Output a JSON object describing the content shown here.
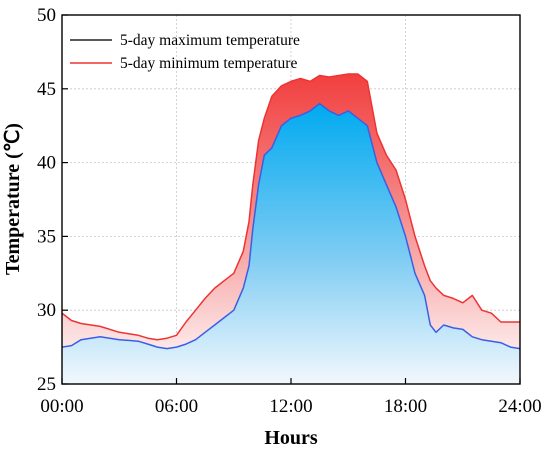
{
  "chart_data": {
    "type": "area",
    "title": "",
    "xlabel": "Hours",
    "ylabel": "Temperature (℃)",
    "xlim": [
      0,
      24
    ],
    "ylim": [
      25,
      50
    ],
    "xtick_labels": [
      "00:00",
      "06:00",
      "12:00",
      "18:00",
      "24:00"
    ],
    "ytick_labels": [
      "25",
      "30",
      "35",
      "40",
      "45",
      "50"
    ],
    "grid": true,
    "legend_position": "top-left",
    "series": [
      {
        "name": "5-day maximum temperature",
        "color": "#3a5fe6",
        "x": [
          0,
          0.5,
          1,
          2,
          3,
          4,
          4.5,
          5,
          5.5,
          6,
          6.5,
          7,
          7.5,
          8,
          8.5,
          9,
          9.5,
          9.8,
          10,
          10.3,
          10.6,
          11,
          11.5,
          12,
          12.5,
          13,
          13.5,
          14,
          14.5,
          15,
          15.5,
          16,
          16.5,
          17,
          17.5,
          18,
          18.5,
          19,
          19.3,
          19.6,
          20,
          20.5,
          21,
          21.5,
          22,
          22.5,
          23,
          23.5,
          24
        ],
        "values": [
          27.5,
          27.6,
          28.0,
          28.2,
          28.0,
          27.9,
          27.7,
          27.5,
          27.4,
          27.5,
          27.7,
          28.0,
          28.5,
          29.0,
          29.5,
          30.0,
          31.5,
          33.0,
          35.5,
          38.5,
          40.5,
          41.0,
          42.5,
          43.0,
          43.2,
          43.5,
          44.0,
          43.5,
          43.2,
          43.5,
          43.0,
          42.5,
          40.0,
          38.5,
          37.0,
          35.0,
          32.5,
          31.0,
          29.0,
          28.5,
          29.0,
          28.8,
          28.7,
          28.2,
          28.0,
          27.9,
          27.8,
          27.5,
          27.4
        ]
      },
      {
        "name": "5-day minimum temperature",
        "color": "#ee3333",
        "x": [
          0,
          0.5,
          1,
          2,
          3,
          4,
          4.5,
          5,
          5.5,
          6,
          6.5,
          7,
          7.5,
          8,
          8.5,
          9,
          9.5,
          9.8,
          10,
          10.3,
          10.6,
          11,
          11.5,
          12,
          12.5,
          13,
          13.5,
          14,
          14.5,
          15,
          15.5,
          16,
          16.5,
          17,
          17.5,
          18,
          18.5,
          19,
          19.3,
          19.6,
          20,
          20.5,
          21,
          21.5,
          22,
          22.5,
          23,
          23.5,
          24
        ],
        "values": [
          29.8,
          29.3,
          29.1,
          28.9,
          28.5,
          28.3,
          28.1,
          28.0,
          28.1,
          28.3,
          29.2,
          30.0,
          30.8,
          31.5,
          32.0,
          32.5,
          34.0,
          36.0,
          38.5,
          41.5,
          43.0,
          44.5,
          45.2,
          45.5,
          45.7,
          45.5,
          45.9,
          45.8,
          45.9,
          46.0,
          46.0,
          45.5,
          42.0,
          40.5,
          39.5,
          37.5,
          35.0,
          33.0,
          32.0,
          31.5,
          31.0,
          30.8,
          30.5,
          31.0,
          30.0,
          29.8,
          29.2,
          29.2,
          29.2
        ]
      }
    ]
  }
}
